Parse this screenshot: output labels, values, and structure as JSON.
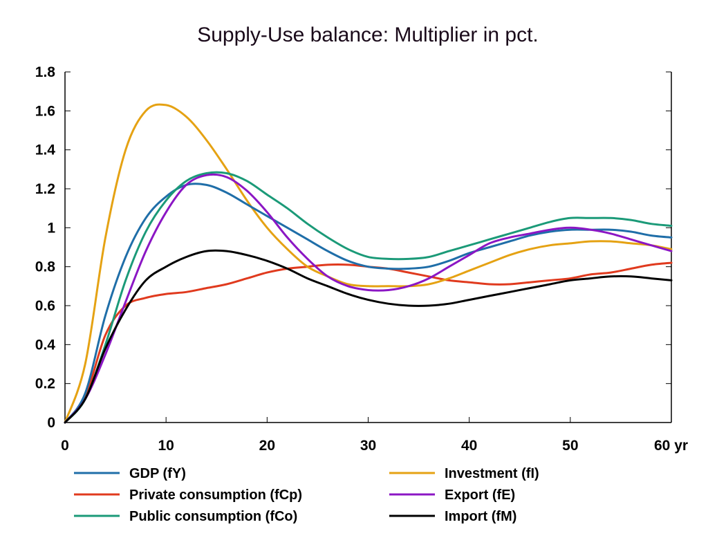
{
  "chart_data": {
    "type": "line",
    "title": "Supply-Use balance: Multiplier in pct.",
    "xlabel": "",
    "ylabel": "",
    "xlim": [
      0,
      60
    ],
    "ylim": [
      0,
      1.8
    ],
    "x_ticks": [
      0,
      10,
      20,
      30,
      40,
      50,
      60
    ],
    "x_tick_labels": [
      "0",
      "10",
      "20",
      "30",
      "40",
      "50",
      "60 yr"
    ],
    "y_ticks": [
      0,
      0.2,
      0.4,
      0.6,
      0.8,
      1,
      1.2,
      1.4,
      1.6,
      1.8
    ],
    "y_tick_labels": [
      "0",
      "0.2",
      "0.4",
      "0.6",
      "0.8",
      "1",
      "1.2",
      "1.4",
      "1.6",
      "1.8"
    ],
    "grid": false,
    "legend_position": "bottom",
    "x": [
      0,
      2,
      4,
      6,
      8,
      10,
      12,
      14,
      16,
      18,
      20,
      22,
      24,
      26,
      28,
      30,
      32,
      34,
      36,
      38,
      40,
      42,
      44,
      46,
      48,
      50,
      52,
      54,
      56,
      58,
      60
    ],
    "series": [
      {
        "name": "GDP (fY)",
        "color": "#1f6ea8",
        "values": [
          0,
          0.15,
          0.55,
          0.85,
          1.05,
          1.16,
          1.22,
          1.22,
          1.18,
          1.12,
          1.06,
          1.0,
          0.94,
          0.88,
          0.83,
          0.8,
          0.79,
          0.79,
          0.8,
          0.83,
          0.87,
          0.9,
          0.93,
          0.96,
          0.98,
          0.99,
          0.99,
          0.99,
          0.98,
          0.96,
          0.95
        ]
      },
      {
        "name": "Private consumption (fCp)",
        "color": "#e03a1e",
        "values": [
          0,
          0.13,
          0.45,
          0.6,
          0.64,
          0.66,
          0.67,
          0.69,
          0.71,
          0.74,
          0.77,
          0.79,
          0.8,
          0.81,
          0.81,
          0.8,
          0.79,
          0.77,
          0.75,
          0.73,
          0.72,
          0.71,
          0.71,
          0.72,
          0.73,
          0.74,
          0.76,
          0.77,
          0.79,
          0.81,
          0.82
        ]
      },
      {
        "name": "Public consumption (fCo)",
        "color": "#1b9a78",
        "values": [
          0,
          0.12,
          0.4,
          0.73,
          0.98,
          1.14,
          1.24,
          1.28,
          1.28,
          1.24,
          1.17,
          1.1,
          1.02,
          0.95,
          0.89,
          0.85,
          0.84,
          0.84,
          0.85,
          0.88,
          0.91,
          0.94,
          0.97,
          1.0,
          1.03,
          1.05,
          1.05,
          1.05,
          1.04,
          1.02,
          1.01
        ]
      },
      {
        "name": "Investment (fI)",
        "color": "#e5a213",
        "values": [
          0,
          0.3,
          0.95,
          1.4,
          1.6,
          1.63,
          1.57,
          1.45,
          1.3,
          1.14,
          1.0,
          0.89,
          0.8,
          0.75,
          0.71,
          0.7,
          0.7,
          0.7,
          0.71,
          0.74,
          0.78,
          0.82,
          0.86,
          0.89,
          0.91,
          0.92,
          0.93,
          0.93,
          0.92,
          0.91,
          0.89
        ]
      },
      {
        "name": "Export (fE)",
        "color": "#8b16c4",
        "values": [
          0,
          0.12,
          0.35,
          0.62,
          0.88,
          1.08,
          1.22,
          1.27,
          1.26,
          1.19,
          1.08,
          0.95,
          0.84,
          0.75,
          0.7,
          0.68,
          0.68,
          0.7,
          0.74,
          0.8,
          0.86,
          0.92,
          0.95,
          0.97,
          0.99,
          1.0,
          0.99,
          0.97,
          0.94,
          0.91,
          0.88
        ]
      },
      {
        "name": "Import (fM)",
        "color": "#000000",
        "values": [
          0,
          0.12,
          0.38,
          0.58,
          0.73,
          0.8,
          0.85,
          0.88,
          0.88,
          0.86,
          0.83,
          0.79,
          0.74,
          0.7,
          0.66,
          0.63,
          0.61,
          0.6,
          0.6,
          0.61,
          0.63,
          0.65,
          0.67,
          0.69,
          0.71,
          0.73,
          0.74,
          0.75,
          0.75,
          0.74,
          0.73
        ]
      }
    ]
  }
}
